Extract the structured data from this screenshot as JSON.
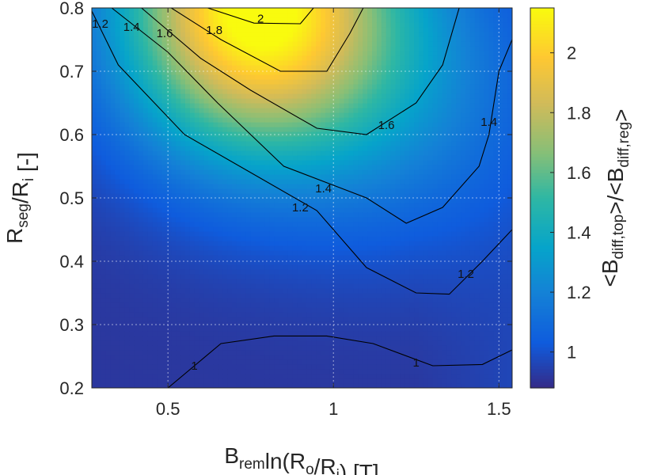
{
  "chart_data": {
    "type": "heatmap",
    "x": {
      "label_parts": [
        {
          "t": "B",
          "sub": false
        },
        {
          "t": "rem",
          "sub": true
        },
        {
          "t": "ln(R",
          "sub": false
        },
        {
          "t": "o",
          "sub": true
        },
        {
          "t": "/R",
          "sub": false
        },
        {
          "t": "i",
          "sub": true
        },
        {
          "t": ") [T]",
          "sub": false
        }
      ],
      "range": [
        0.27,
        1.54
      ],
      "ticks": [
        0.5,
        1,
        1.5
      ],
      "tick_labels": [
        "0.5",
        "1",
        "1.5"
      ]
    },
    "y": {
      "label_parts": [
        {
          "t": "R",
          "sub": false
        },
        {
          "t": "seg",
          "sub": true
        },
        {
          "t": "/R",
          "sub": false
        },
        {
          "t": "i",
          "sub": true
        },
        {
          "t": " [-]",
          "sub": false
        }
      ],
      "range": [
        0.2,
        0.8
      ],
      "ticks": [
        0.2,
        0.3,
        0.4,
        0.5,
        0.6,
        0.7,
        0.8
      ],
      "tick_labels": [
        "0.2",
        "0.3",
        "0.4",
        "0.5",
        "0.6",
        "0.7",
        "0.8"
      ]
    },
    "colorbar": {
      "label_parts": [
        {
          "t": "<B",
          "sub": false
        },
        {
          "t": "diff,top",
          "sub": true
        },
        {
          "t": ">/<B",
          "sub": false
        },
        {
          "t": "diff,reg",
          "sub": true
        },
        {
          "t": ">",
          "sub": false
        }
      ],
      "range": [
        0.88,
        2.15
      ],
      "ticks": [
        1,
        1.2,
        1.4,
        1.6,
        1.8,
        2
      ],
      "tick_labels": [
        "1",
        "1.2",
        "1.4",
        "1.6",
        "1.8",
        "2"
      ],
      "colormap": "parula"
    },
    "grid": true,
    "contours": [
      {
        "level": 1,
        "label": "1",
        "points": [
          [
            0.33,
            0.2
          ],
          [
            0.5,
            0.2
          ],
          [
            0.66,
            0.27
          ],
          [
            0.82,
            0.282
          ],
          [
            0.98,
            0.282
          ],
          [
            1.12,
            0.27
          ],
          [
            1.3,
            0.235
          ],
          [
            1.45,
            0.237
          ],
          [
            1.54,
            0.26
          ]
        ],
        "label_points": [
          [
            0.58,
            0.235
          ],
          [
            1.25,
            0.24
          ]
        ]
      },
      {
        "level": 1.2,
        "label": "1.2",
        "points": [
          [
            0.27,
            0.795
          ],
          [
            0.35,
            0.71
          ],
          [
            0.55,
            0.6
          ],
          [
            0.75,
            0.54
          ],
          [
            0.95,
            0.48
          ],
          [
            1.1,
            0.39
          ],
          [
            1.25,
            0.35
          ],
          [
            1.35,
            0.348
          ],
          [
            1.45,
            0.4
          ],
          [
            1.54,
            0.45
          ]
        ],
        "label_points": [
          [
            0.295,
            0.775
          ],
          [
            0.9,
            0.485
          ],
          [
            1.4,
            0.38
          ]
        ]
      },
      {
        "level": 1.4,
        "label": "1.4",
        "points": [
          [
            0.33,
            0.8
          ],
          [
            0.5,
            0.73
          ],
          [
            0.65,
            0.65
          ],
          [
            0.85,
            0.55
          ],
          [
            1.0,
            0.52
          ],
          [
            1.1,
            0.5
          ],
          [
            1.22,
            0.46
          ],
          [
            1.33,
            0.485
          ],
          [
            1.44,
            0.55
          ],
          [
            1.47,
            0.6
          ],
          [
            1.5,
            0.7
          ],
          [
            1.54,
            0.75
          ]
        ],
        "label_points": [
          [
            0.39,
            0.77
          ],
          [
            0.97,
            0.515
          ],
          [
            1.47,
            0.62
          ]
        ]
      },
      {
        "level": 1.6,
        "label": "1.6",
        "points": [
          [
            0.42,
            0.8
          ],
          [
            0.6,
            0.72
          ],
          [
            0.75,
            0.67
          ],
          [
            0.95,
            0.61
          ],
          [
            1.1,
            0.6
          ],
          [
            1.25,
            0.65
          ],
          [
            1.33,
            0.71
          ],
          [
            1.38,
            0.8
          ]
        ],
        "label_points": [
          [
            0.49,
            0.76
          ],
          [
            1.16,
            0.615
          ]
        ]
      },
      {
        "level": 1.8,
        "label": "1.8",
        "points": [
          [
            0.51,
            0.8
          ],
          [
            0.66,
            0.75
          ],
          [
            0.84,
            0.7
          ],
          [
            0.98,
            0.7
          ],
          [
            1.05,
            0.76
          ],
          [
            1.09,
            0.8
          ]
        ],
        "label_points": [
          [
            0.64,
            0.765
          ]
        ]
      },
      {
        "level": 2,
        "label": "2",
        "points": [
          [
            0.62,
            0.8
          ],
          [
            0.76,
            0.776
          ],
          [
            0.9,
            0.775
          ],
          [
            0.94,
            0.8
          ]
        ],
        "label_points": [
          [
            0.78,
            0.783
          ]
        ]
      }
    ],
    "field_peaks": [
      {
        "x": 0.76,
        "y": 0.8,
        "amp": 1.25,
        "sx": 0.28,
        "sy": 0.16
      },
      {
        "x": 1.22,
        "y": 0.68,
        "amp": 0.25,
        "sx": 0.28,
        "sy": 0.17
      }
    ]
  }
}
